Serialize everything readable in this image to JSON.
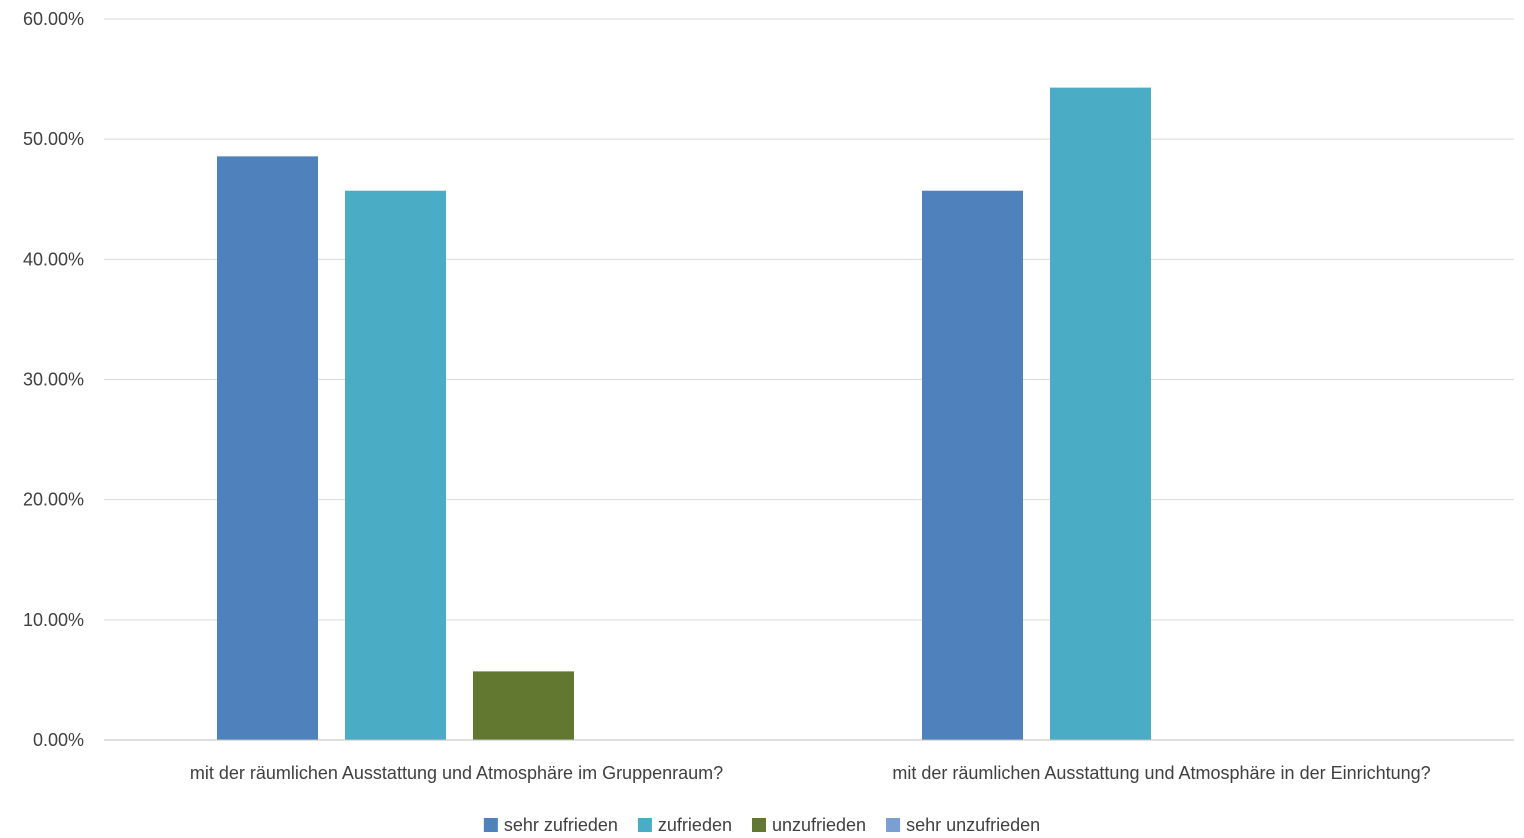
{
  "chart_data": {
    "type": "bar",
    "categories": [
      "mit der räumlichen Ausstattung und Atmosphäre im Gruppenraum?",
      "mit der räumlichen Ausstattung und Atmosphäre in der Einrichtung?"
    ],
    "series": [
      {
        "name": "sehr zufrieden",
        "color": "#4f81bd",
        "values": [
          48.57,
          45.71
        ]
      },
      {
        "name": "zufrieden",
        "color": "#4bacc6",
        "values": [
          45.71,
          54.29
        ]
      },
      {
        "name": "unzufrieden",
        "color": "#62772f",
        "values": [
          5.71,
          0
        ]
      },
      {
        "name": "sehr unzufrieden",
        "color": "#7b9fd3",
        "values": [
          0,
          0
        ]
      }
    ],
    "yticks": [
      "0.00%",
      "10.00%",
      "20.00%",
      "30.00%",
      "40.00%",
      "50.00%",
      "60.00%"
    ],
    "ylim": [
      0,
      60
    ],
    "grid": true,
    "legend_position": "bottom"
  }
}
